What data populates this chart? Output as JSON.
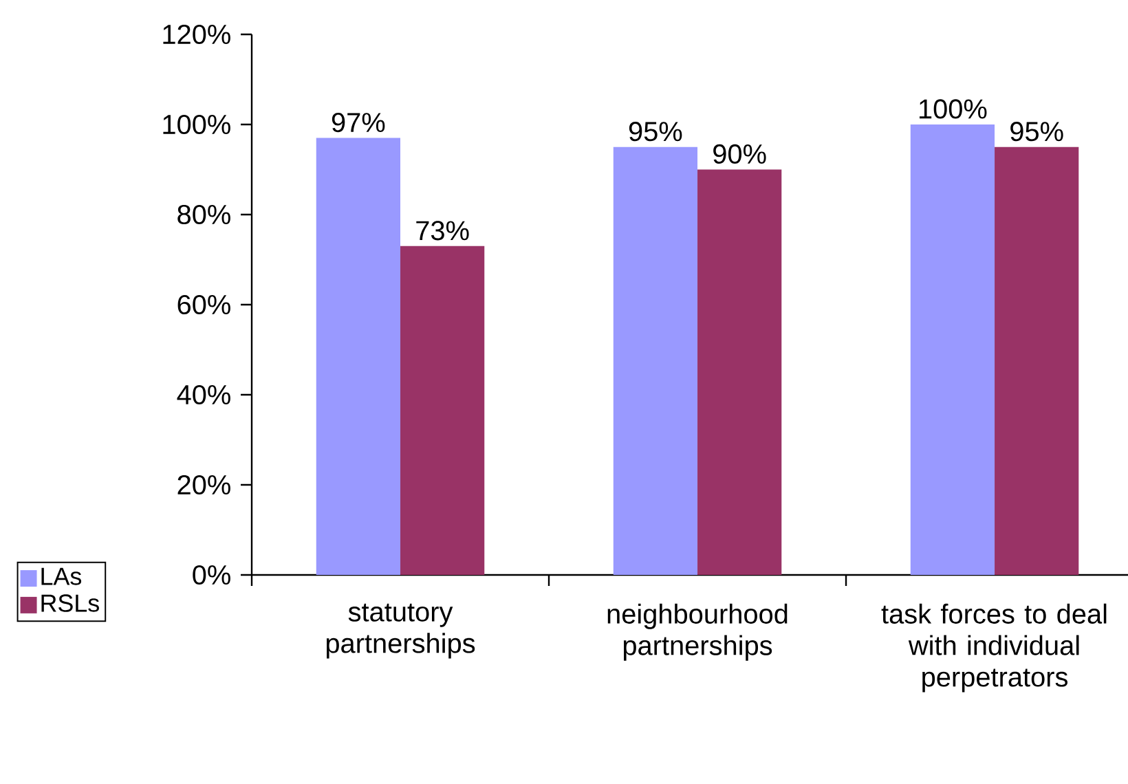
{
  "chart_data": {
    "type": "bar",
    "categories": [
      "statutory partnerships",
      "neighbourhood partnerships",
      "task forces to deal with individual perpetrators"
    ],
    "series": [
      {
        "name": "LAs",
        "color": "#9999ff",
        "values": [
          97,
          95,
          100
        ],
        "value_labels": [
          "97%",
          "95%",
          "100%"
        ]
      },
      {
        "name": "RSLs",
        "color": "#993366",
        "values": [
          73,
          90,
          95
        ],
        "value_labels": [
          "73%",
          "90%",
          "95%"
        ]
      }
    ],
    "ylim": [
      0,
      120
    ],
    "yticks": [
      {
        "value": 0,
        "label": "0%"
      },
      {
        "value": 20,
        "label": "20%"
      },
      {
        "value": 40,
        "label": "40%"
      },
      {
        "value": 60,
        "label": "60%"
      },
      {
        "value": 80,
        "label": "80%"
      },
      {
        "value": 100,
        "label": "100%"
      },
      {
        "value": 120,
        "label": "120%"
      }
    ],
    "legend": "bottom left"
  }
}
